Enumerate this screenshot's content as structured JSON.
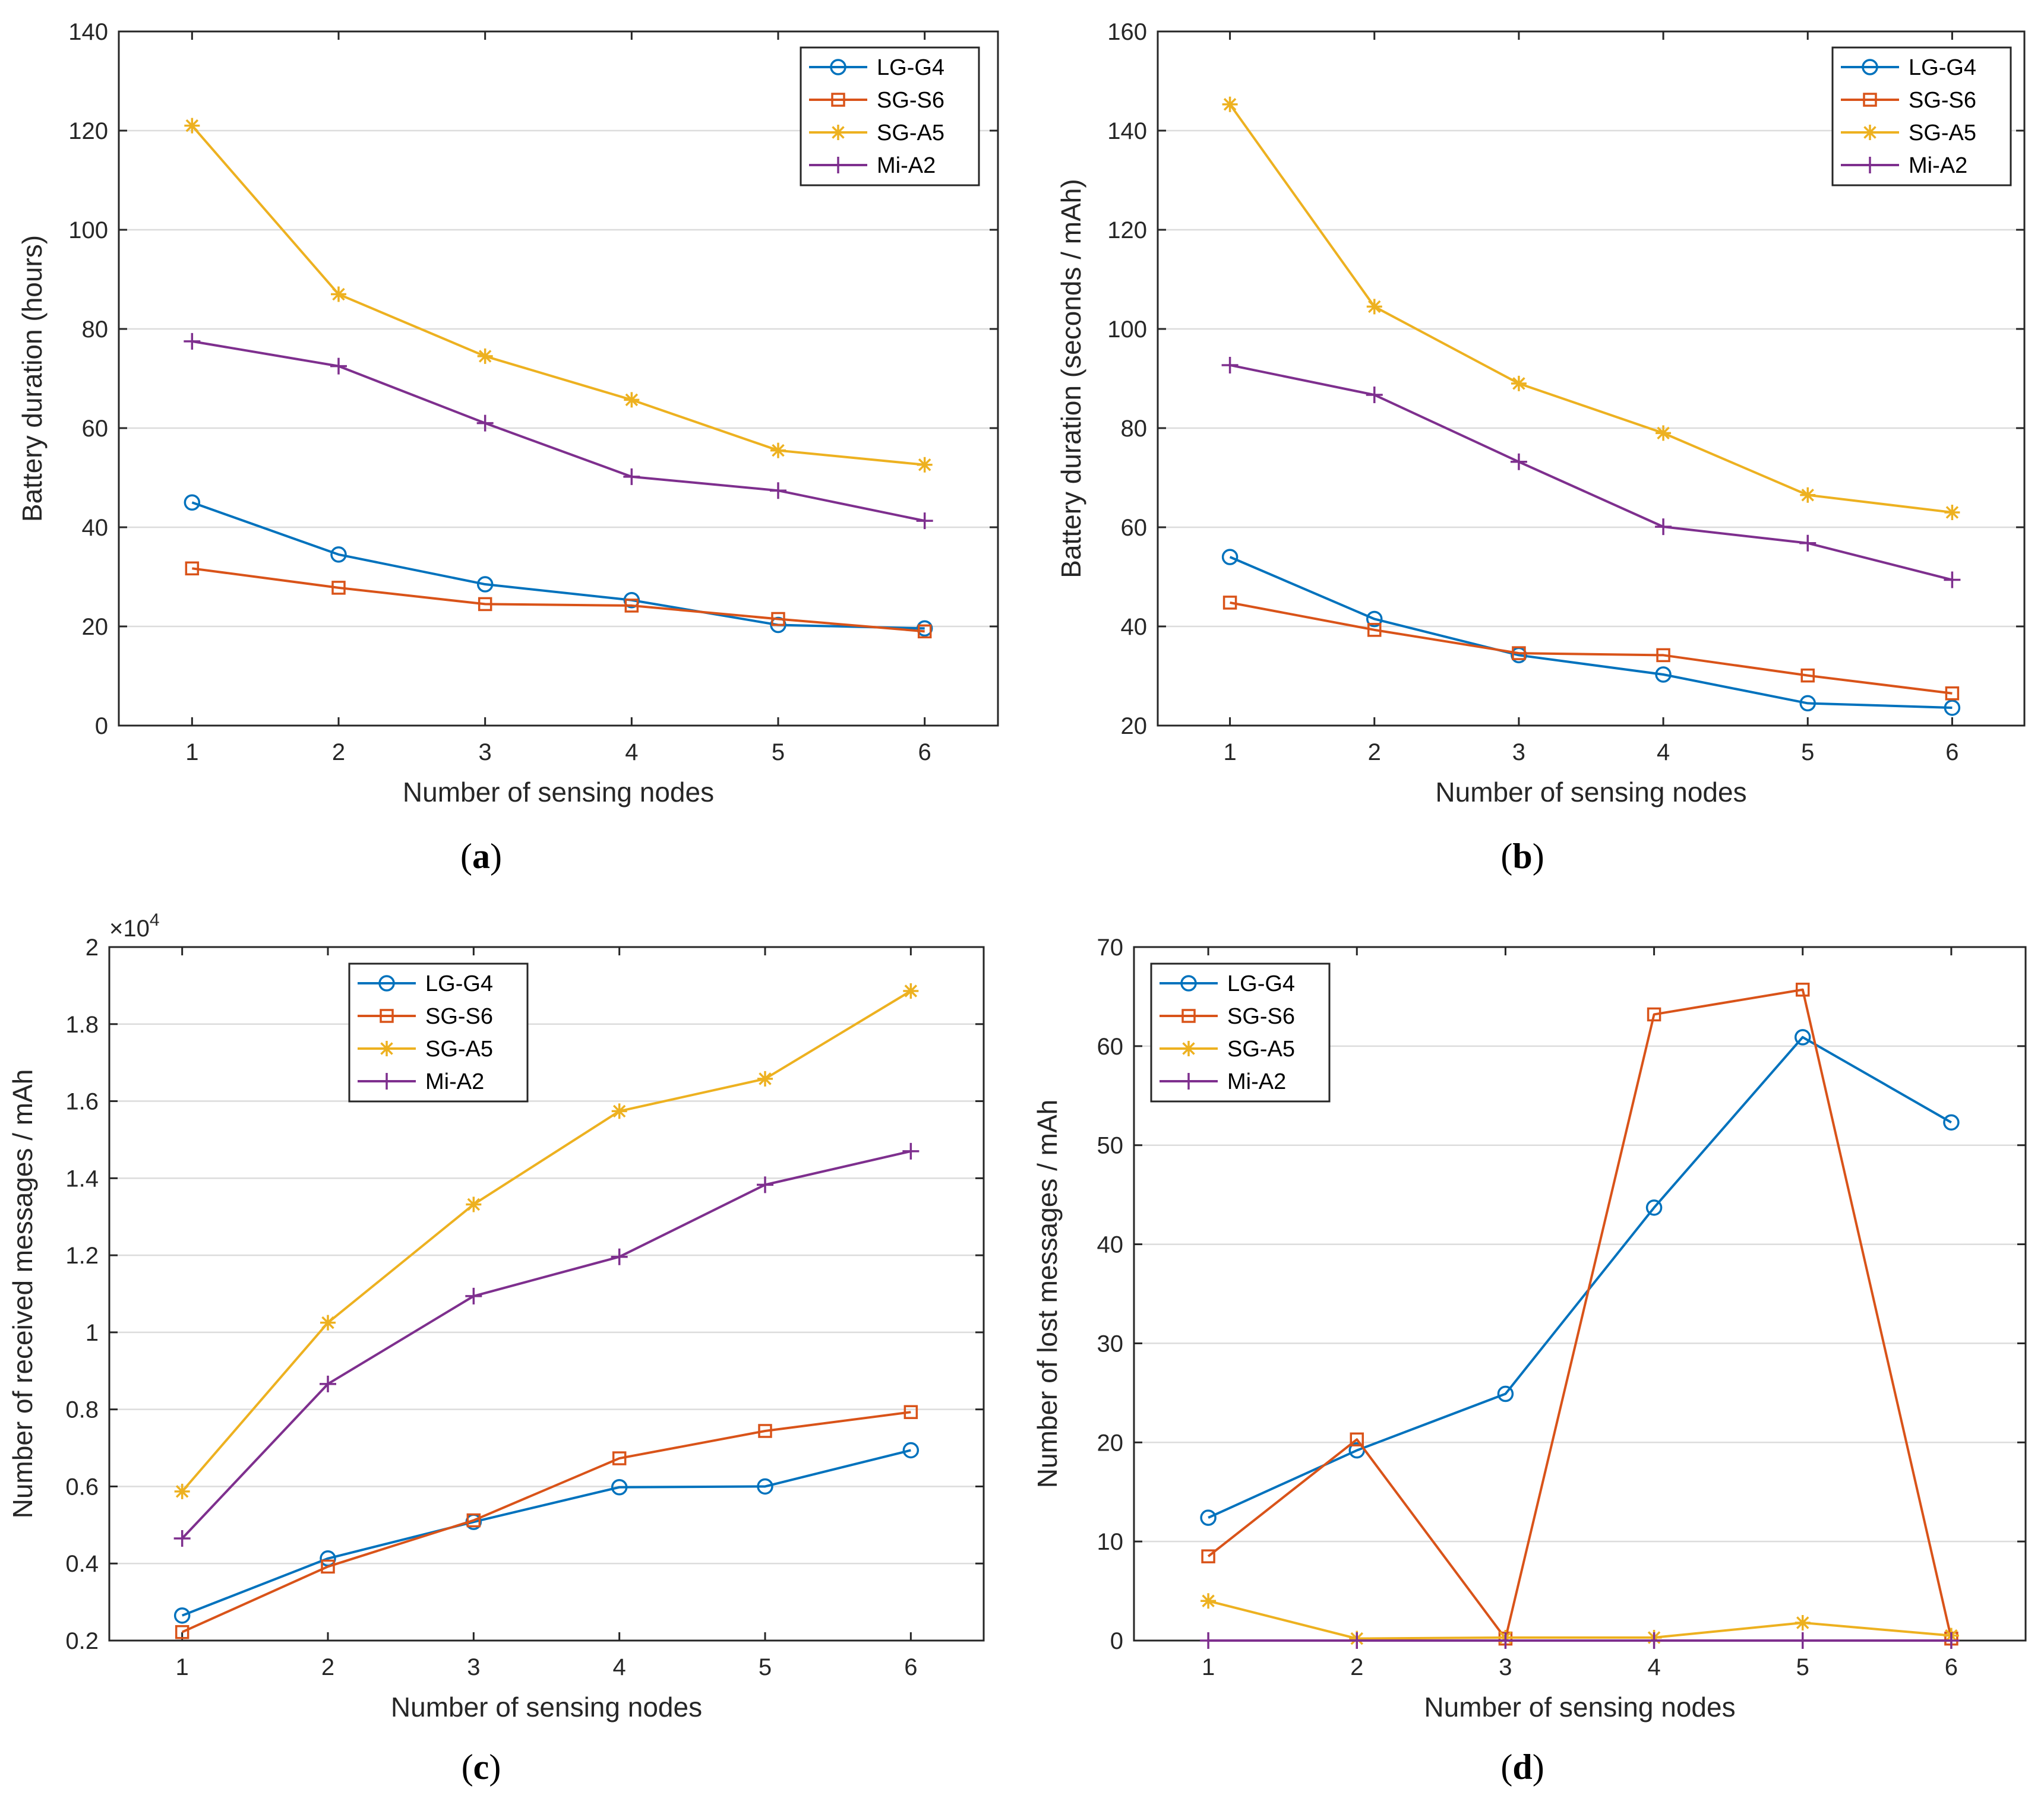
{
  "chart_data": [
    {
      "id": "a",
      "type": "line",
      "caption": "a",
      "xlabel": "Number of sensing nodes",
      "ylabel": "Battery duration (hours)",
      "xlim": [
        0.5,
        6.5
      ],
      "ylim": [
        0,
        140
      ],
      "xticks": [
        "1",
        "2",
        "3",
        "4",
        "5",
        "6"
      ],
      "yticks": [
        "0",
        "20",
        "40",
        "60",
        "80",
        "100",
        "120",
        "140"
      ],
      "grid": "horizontal",
      "legend_position": "top-right",
      "x": [
        1,
        2,
        3,
        4,
        5,
        6
      ],
      "series": [
        {
          "name": "LG-G4",
          "color": "#0072BD",
          "marker": "circle",
          "values": [
            45,
            34.5,
            28.5,
            25.3,
            20.3,
            19.6
          ]
        },
        {
          "name": "SG-S6",
          "color": "#D95319",
          "marker": "square",
          "values": [
            31.7,
            27.8,
            24.5,
            24.2,
            21.5,
            19
          ]
        },
        {
          "name": "SG-A5",
          "color": "#EDB120",
          "marker": "asterisk",
          "values": [
            121,
            87,
            74.5,
            65.7,
            55.5,
            52.6
          ]
        },
        {
          "name": "Mi-A2",
          "color": "#7E2F8E",
          "marker": "plus",
          "values": [
            77.5,
            72.5,
            61,
            50.2,
            47.4,
            41.3
          ]
        }
      ]
    },
    {
      "id": "b",
      "type": "line",
      "caption": "b",
      "xlabel": "Number of sensing nodes",
      "ylabel": "Battery duration (seconds / mAh)",
      "xlim": [
        0.5,
        6.5
      ],
      "ylim": [
        20,
        160
      ],
      "xticks": [
        "1",
        "2",
        "3",
        "4",
        "5",
        "6"
      ],
      "yticks": [
        "20",
        "40",
        "60",
        "80",
        "100",
        "120",
        "140",
        "160"
      ],
      "grid": "horizontal",
      "legend_position": "top-right",
      "x": [
        1,
        2,
        3,
        4,
        5,
        6
      ],
      "series": [
        {
          "name": "LG-G4",
          "color": "#0072BD",
          "marker": "circle",
          "values": [
            54,
            41.5,
            34.2,
            30.3,
            24.5,
            23.6
          ]
        },
        {
          "name": "SG-S6",
          "color": "#D95319",
          "marker": "square",
          "values": [
            44.8,
            39.3,
            34.6,
            34.2,
            30.1,
            26.5
          ]
        },
        {
          "name": "SG-A5",
          "color": "#EDB120",
          "marker": "asterisk",
          "values": [
            145.3,
            104.5,
            89,
            79,
            66.5,
            63
          ]
        },
        {
          "name": "Mi-A2",
          "color": "#7E2F8E",
          "marker": "plus",
          "values": [
            92.7,
            86.7,
            73.2,
            60.1,
            56.8,
            49.4
          ]
        }
      ]
    },
    {
      "id": "c",
      "type": "line",
      "caption": "c",
      "xlabel": "Number of sensing nodes",
      "ylabel": "Number of received messages / mAh",
      "exponent_label": "×10",
      "exponent_power": "4",
      "xlim": [
        0.5,
        6.5
      ],
      "ylim": [
        0.2,
        2
      ],
      "xticks": [
        "1",
        "2",
        "3",
        "4",
        "5",
        "6"
      ],
      "yticks": [
        "0.2",
        "0.4",
        "0.6",
        "0.8",
        "1",
        "1.2",
        "1.4",
        "1.6",
        "1.8",
        "2"
      ],
      "grid": "horizontal",
      "legend_position": "top-center",
      "x": [
        1,
        2,
        3,
        4,
        5,
        6
      ],
      "series": [
        {
          "name": "LG-G4",
          "color": "#0072BD",
          "marker": "circle",
          "values": [
            0.265,
            0.413,
            0.508,
            0.598,
            0.6,
            0.694
          ]
        },
        {
          "name": "SG-S6",
          "color": "#D95319",
          "marker": "square",
          "values": [
            0.222,
            0.392,
            0.512,
            0.673,
            0.744,
            0.793
          ]
        },
        {
          "name": "SG-A5",
          "color": "#EDB120",
          "marker": "asterisk",
          "values": [
            0.587,
            1.025,
            1.332,
            1.574,
            1.658,
            1.886
          ]
        },
        {
          "name": "Mi-A2",
          "color": "#7E2F8E",
          "marker": "plus",
          "values": [
            0.465,
            0.866,
            1.094,
            1.196,
            1.383,
            1.47
          ]
        }
      ]
    },
    {
      "id": "d",
      "type": "line",
      "caption": "d",
      "xlabel": "Number of sensing nodes",
      "ylabel": "Number of lost messages / mAh",
      "xlim": [
        0.5,
        6.5
      ],
      "ylim": [
        0,
        70
      ],
      "xticks": [
        "1",
        "2",
        "3",
        "4",
        "5",
        "6"
      ],
      "yticks": [
        "0",
        "10",
        "20",
        "30",
        "40",
        "50",
        "60",
        "70"
      ],
      "grid": "horizontal",
      "legend_position": "top-left",
      "x": [
        1,
        2,
        3,
        4,
        5,
        6
      ],
      "series": [
        {
          "name": "LG-G4",
          "color": "#0072BD",
          "marker": "circle",
          "values": [
            12.4,
            19.2,
            24.9,
            43.7,
            60.9,
            52.3
          ]
        },
        {
          "name": "SG-S6",
          "color": "#D95319",
          "marker": "square",
          "values": [
            8.5,
            20.3,
            0.2,
            63.2,
            65.7,
            0.2
          ]
        },
        {
          "name": "SG-A5",
          "color": "#EDB120",
          "marker": "asterisk",
          "values": [
            4,
            0.2,
            0.3,
            0.3,
            1.8,
            0.5
          ]
        },
        {
          "name": "Mi-A2",
          "color": "#7E2F8E",
          "marker": "plus",
          "values": [
            0,
            0,
            0,
            0,
            0,
            0
          ]
        }
      ]
    }
  ]
}
